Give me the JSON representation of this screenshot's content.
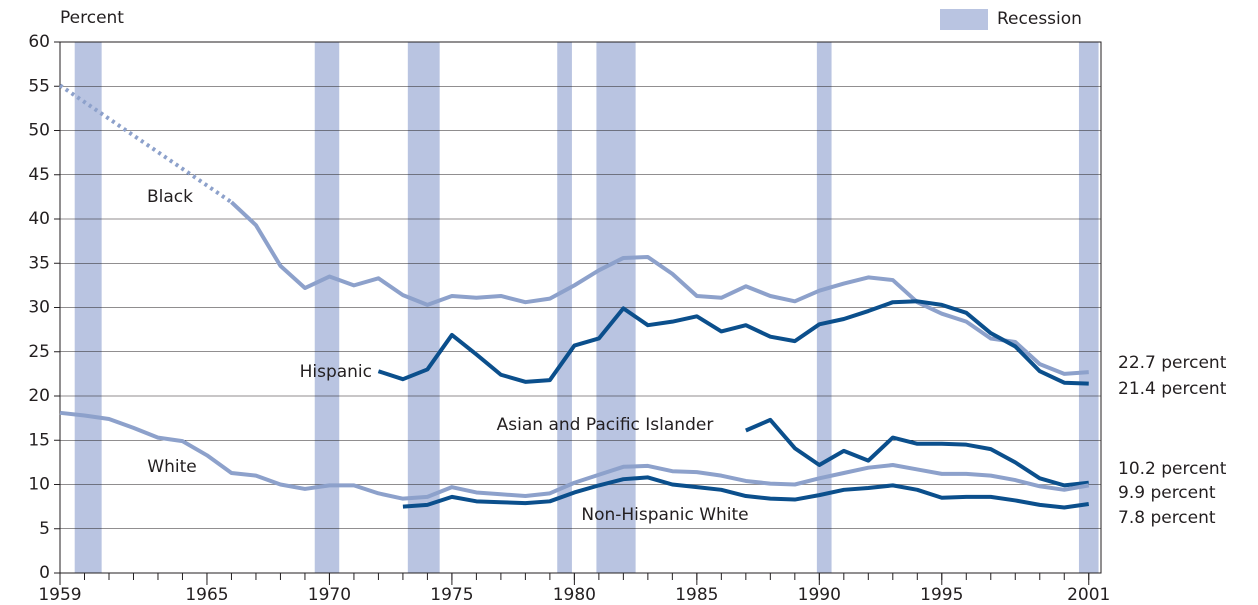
{
  "chart_data": {
    "type": "line",
    "y_axis_label": "Percent",
    "legend_label": "Recession",
    "recession_color": "#b9c4e1",
    "recessions": [
      [
        1959.6,
        1960.7
      ],
      [
        1969.4,
        1970.4
      ],
      [
        1973.2,
        1974.5
      ],
      [
        1979.3,
        1979.9
      ],
      [
        1980.9,
        1982.5
      ],
      [
        1989.9,
        1990.5
      ],
      [
        2000.6,
        2001.4
      ]
    ],
    "x": [
      1959,
      1960,
      1961,
      1962,
      1963,
      1964,
      1965,
      1966,
      1967,
      1968,
      1969,
      1970,
      1971,
      1972,
      1973,
      1974,
      1975,
      1976,
      1977,
      1978,
      1979,
      1980,
      1981,
      1982,
      1983,
      1984,
      1985,
      1986,
      1987,
      1988,
      1989,
      1990,
      1991,
      1992,
      1993,
      1994,
      1995,
      1996,
      1997,
      1998,
      1999,
      2000,
      2001
    ],
    "xlim": [
      1959,
      2001.5
    ],
    "xticks": [
      1959,
      1965,
      1970,
      1975,
      1980,
      1985,
      1990,
      1995,
      2001
    ],
    "ylim": [
      0,
      60
    ],
    "yticks": [
      0,
      5,
      10,
      15,
      20,
      25,
      30,
      35,
      40,
      45,
      50,
      55,
      60
    ],
    "grid": true,
    "gap_style": "dotted",
    "series": [
      {
        "name": "Black",
        "color": "#8da1cb",
        "end_label": "22.7 percent",
        "values": [
          55.1,
          null,
          null,
          null,
          null,
          null,
          null,
          41.9,
          39.3,
          34.7,
          32.2,
          33.5,
          32.5,
          33.3,
          31.4,
          30.3,
          31.3,
          31.1,
          31.3,
          30.6,
          31.0,
          32.5,
          34.2,
          35.6,
          35.7,
          33.8,
          31.3,
          31.1,
          32.4,
          31.3,
          30.7,
          31.9,
          32.7,
          33.4,
          33.1,
          30.6,
          29.3,
          28.4,
          26.5,
          26.1,
          23.6,
          22.5,
          22.7
        ]
      },
      {
        "name": "Hispanic",
        "color": "#0b4f8c",
        "end_label": "21.4 percent",
        "values": [
          null,
          null,
          null,
          null,
          null,
          null,
          null,
          null,
          null,
          null,
          null,
          null,
          null,
          22.8,
          21.9,
          23.0,
          26.9,
          24.7,
          22.4,
          21.6,
          21.8,
          25.7,
          26.5,
          29.9,
          28.0,
          28.4,
          29.0,
          27.3,
          28.0,
          26.7,
          26.2,
          28.1,
          28.7,
          29.6,
          30.6,
          30.7,
          30.3,
          29.4,
          27.1,
          25.6,
          22.8,
          21.5,
          21.4
        ]
      },
      {
        "name": "Asian and Pacific Islander",
        "color": "#0b4f8c",
        "end_label": "10.2 percent",
        "values": [
          null,
          null,
          null,
          null,
          null,
          null,
          null,
          null,
          null,
          null,
          null,
          null,
          null,
          null,
          null,
          null,
          null,
          null,
          null,
          null,
          null,
          null,
          null,
          null,
          null,
          null,
          null,
          null,
          16.1,
          17.3,
          14.1,
          12.2,
          13.8,
          12.7,
          15.3,
          14.6,
          14.6,
          14.5,
          14.0,
          12.5,
          10.7,
          9.9,
          10.2
        ]
      },
      {
        "name": "White",
        "color": "#8da1cb",
        "end_label": "9.9 percent",
        "values": [
          18.1,
          17.8,
          17.4,
          16.4,
          15.3,
          14.9,
          13.3,
          11.3,
          11.0,
          10.0,
          9.5,
          9.9,
          9.9,
          9.0,
          8.4,
          8.6,
          9.7,
          9.1,
          8.9,
          8.7,
          9.0,
          10.2,
          11.1,
          12.0,
          12.1,
          11.5,
          11.4,
          11.0,
          10.4,
          10.1,
          10.0,
          10.7,
          11.3,
          11.9,
          12.2,
          11.7,
          11.2,
          11.2,
          11.0,
          10.5,
          9.8,
          9.4,
          9.9
        ]
      },
      {
        "name": "Non-Hispanic White",
        "color": "#0b4f8c",
        "end_label": "7.8 percent",
        "values": [
          null,
          null,
          null,
          null,
          null,
          null,
          null,
          null,
          null,
          null,
          null,
          null,
          null,
          null,
          7.5,
          7.7,
          8.6,
          8.1,
          8.0,
          7.9,
          8.1,
          9.1,
          9.9,
          10.6,
          10.8,
          10.0,
          9.7,
          9.4,
          8.7,
          8.4,
          8.3,
          8.8,
          9.4,
          9.6,
          9.9,
          9.4,
          8.5,
          8.6,
          8.6,
          8.2,
          7.7,
          7.4,
          7.8
        ]
      }
    ]
  }
}
